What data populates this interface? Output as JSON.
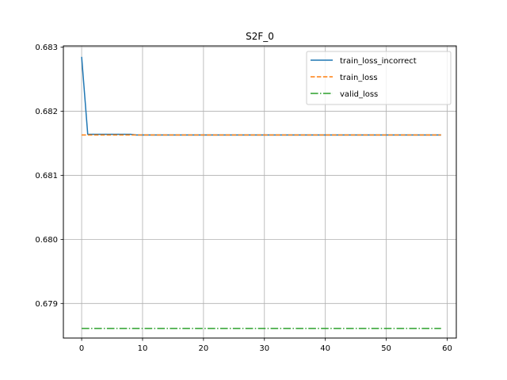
{
  "chart_data": {
    "type": "line",
    "title": "S2F_0",
    "xlabel": "",
    "ylabel": "",
    "xlim": [
      -3,
      61.5
    ],
    "ylim": [
      0.67846,
      0.68302
    ],
    "xticks": [
      0,
      10,
      20,
      30,
      40,
      50,
      60
    ],
    "yticks": [
      0.679,
      0.68,
      0.681,
      0.682,
      0.683
    ],
    "x_tick_labels": [
      "0",
      "10",
      "20",
      "30",
      "40",
      "50",
      "60"
    ],
    "y_tick_labels": [
      "0.679",
      "0.680",
      "0.681",
      "0.682",
      "0.683"
    ],
    "grid": true,
    "legend_position": "top-right",
    "series": [
      {
        "name": "train_loss_incorrect",
        "color": "#1f77b4",
        "style": "solid",
        "x": [
          0,
          1,
          2,
          3,
          4,
          5,
          6,
          7,
          8,
          9,
          10,
          59
        ],
        "y": [
          0.68285,
          0.68164,
          0.68164,
          0.68164,
          0.68164,
          0.68164,
          0.68164,
          0.68164,
          0.68164,
          0.68163,
          0.68163,
          0.68163
        ]
      },
      {
        "name": "train_loss",
        "color": "#ff7f0e",
        "style": "dashed",
        "x": [
          0,
          59
        ],
        "y": [
          0.68163,
          0.68163
        ]
      },
      {
        "name": "valid_loss",
        "color": "#2ca02c",
        "style": "dashdot",
        "x": [
          0,
          59
        ],
        "y": [
          0.67861,
          0.67861
        ]
      }
    ]
  }
}
